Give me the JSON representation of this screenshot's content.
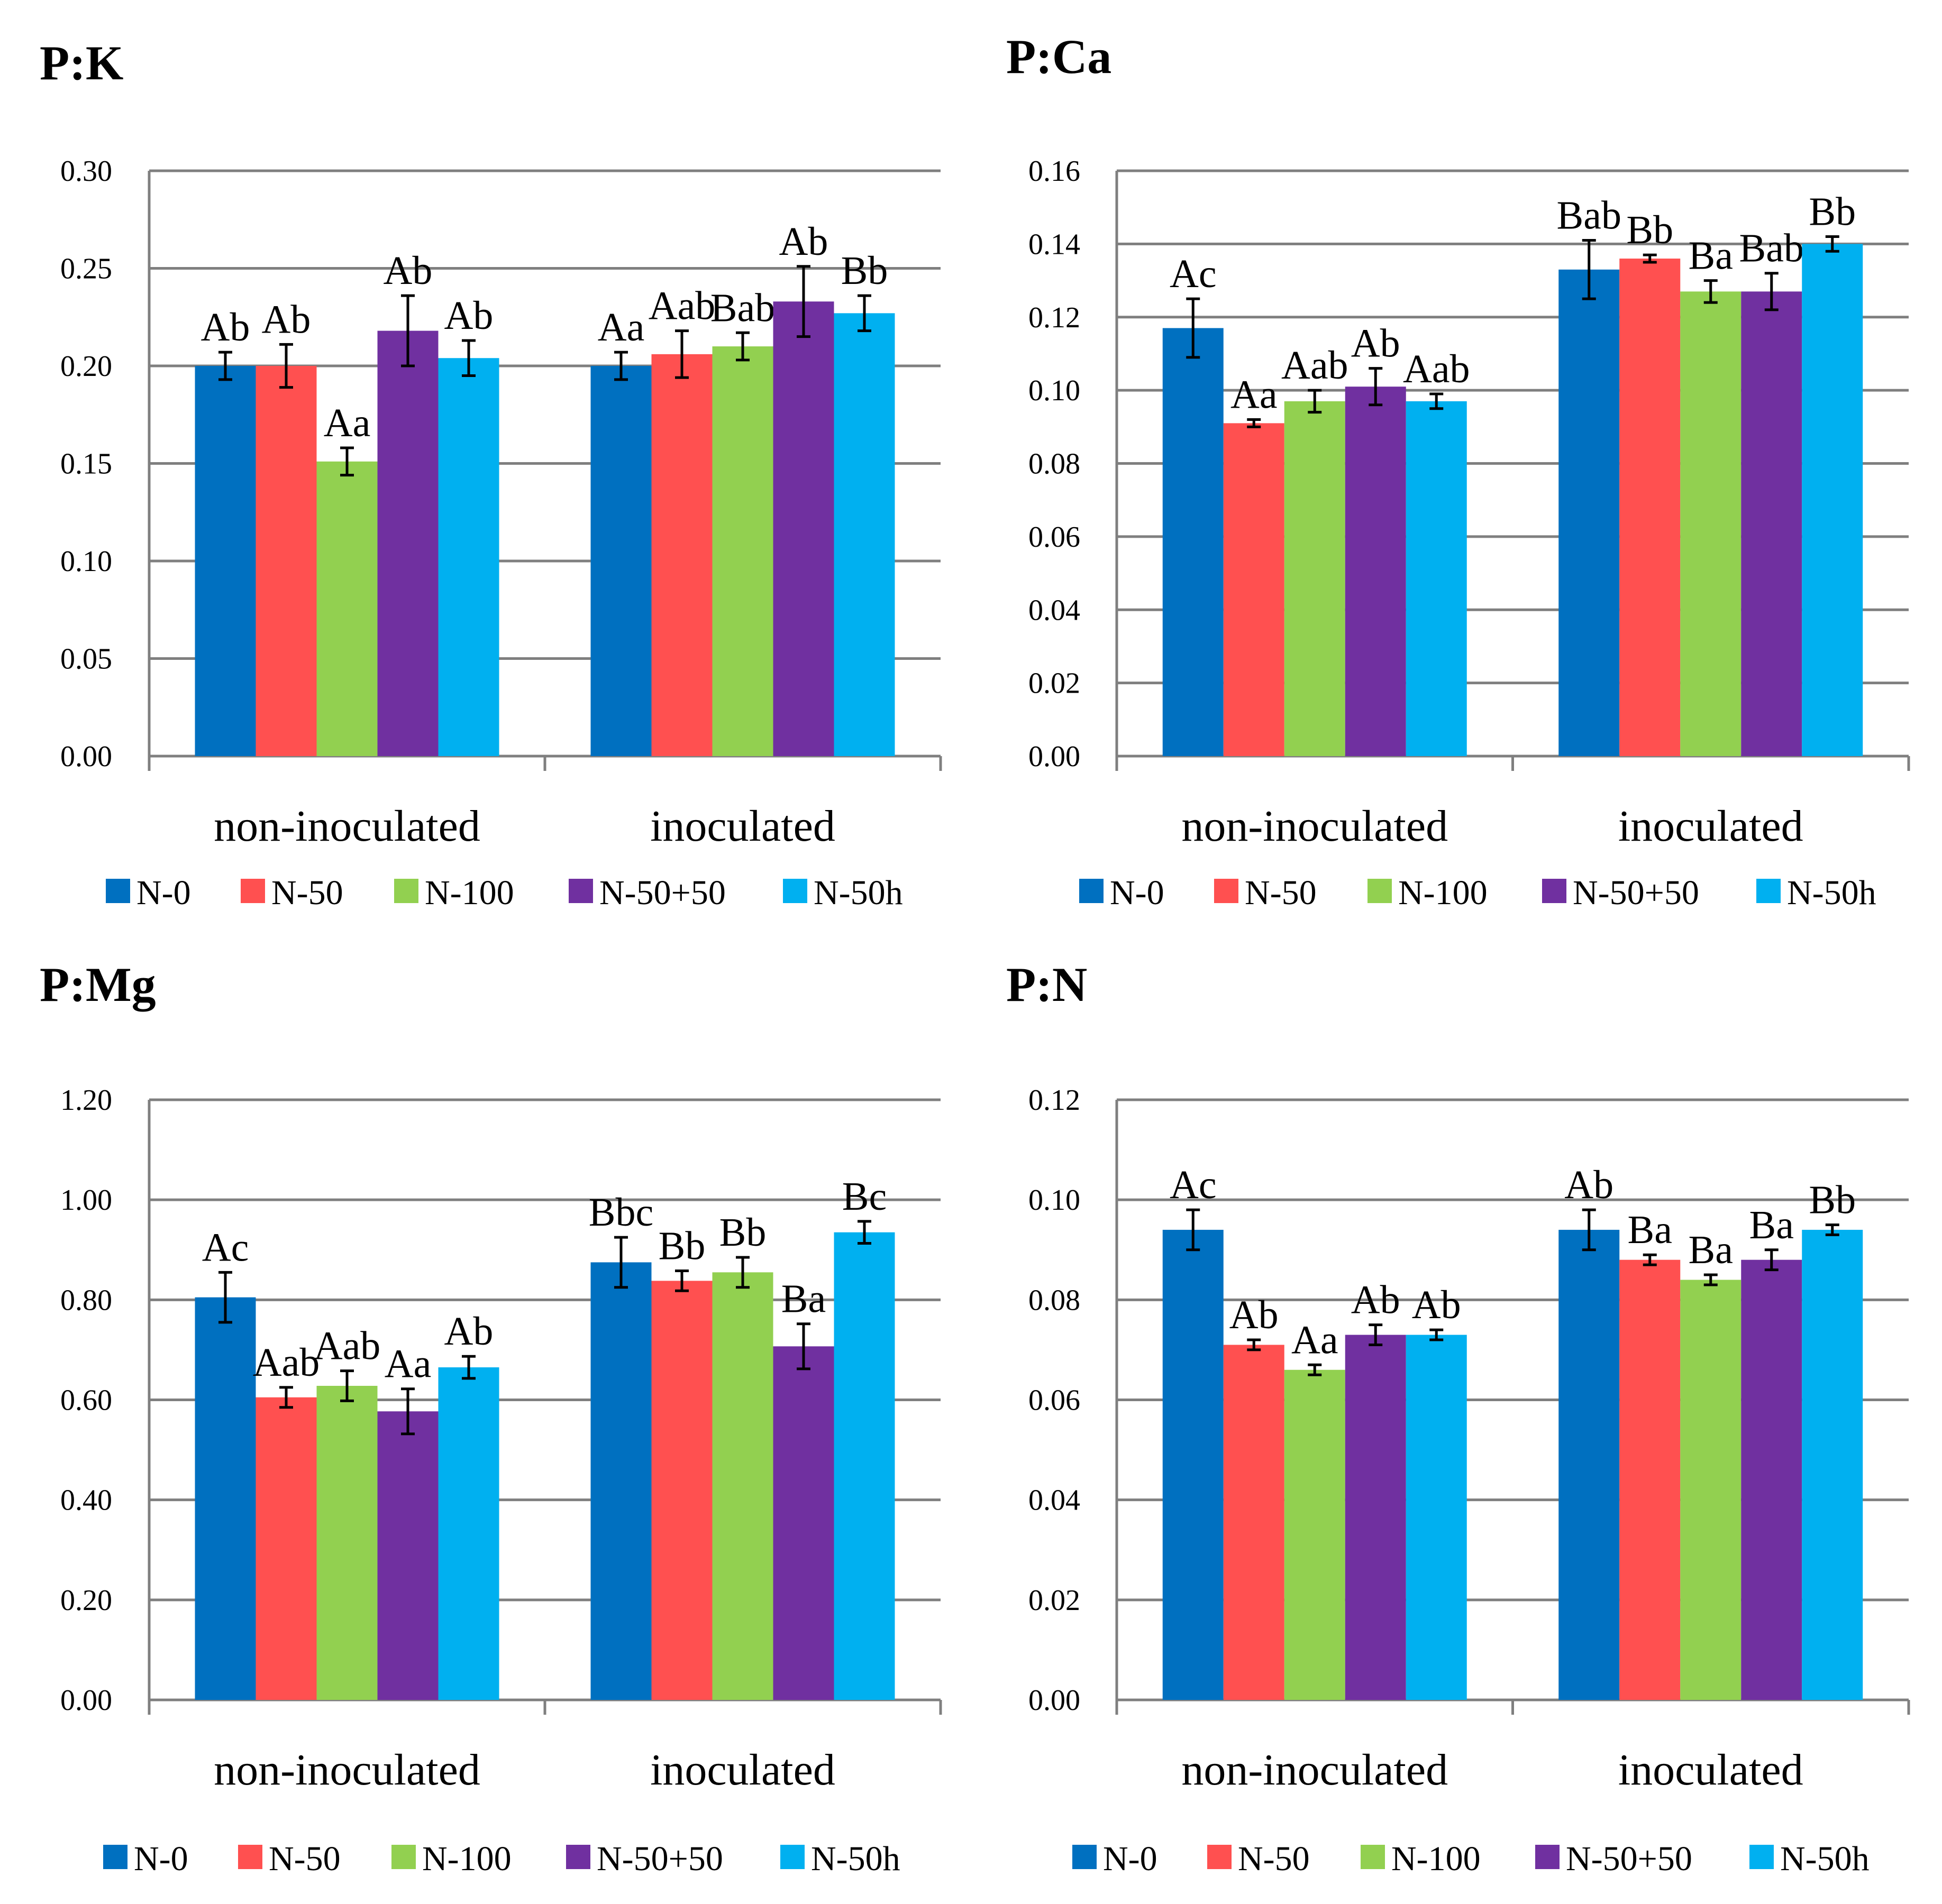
{
  "colors": {
    "N-0": "#0070C0",
    "N-50": "#FF5050",
    "N-100": "#92D050",
    "N-50+50": "#7030A0",
    "N-50h": "#00B0F0",
    "grid": "#7F7F7F",
    "error_bar": "#000000"
  },
  "chart_data": [
    {
      "type": "bar",
      "title": "P:K",
      "categories": [
        "non-inoculated",
        "inoculated"
      ],
      "ylim": [
        0,
        0.3
      ],
      "yticks": [
        "0.00",
        "0.05",
        "0.10",
        "0.15",
        "0.20",
        "0.25",
        "0.30"
      ],
      "legend": [
        "N-0",
        "N-50",
        "N-100",
        "N-50+50",
        "N-50h"
      ],
      "series": [
        {
          "name": "N-0",
          "values": [
            0.2,
            0.2
          ],
          "errors": [
            0.007,
            0.007
          ],
          "labels": [
            "Ab",
            "Aa"
          ]
        },
        {
          "name": "N-50",
          "values": [
            0.2,
            0.206
          ],
          "errors": [
            0.011,
            0.012
          ],
          "labels": [
            "Ab",
            "Aab"
          ]
        },
        {
          "name": "N-100",
          "values": [
            0.151,
            0.21
          ],
          "errors": [
            0.007,
            0.007
          ],
          "labels": [
            "Aa",
            "Bab"
          ]
        },
        {
          "name": "N-50+50",
          "values": [
            0.218,
            0.233
          ],
          "errors": [
            0.018,
            0.018
          ],
          "labels": [
            "Ab",
            "Ab"
          ]
        },
        {
          "name": "N-50h",
          "values": [
            0.204,
            0.227
          ],
          "errors": [
            0.009,
            0.009
          ],
          "labels": [
            "Ab",
            "Bb"
          ]
        }
      ]
    },
    {
      "type": "bar",
      "title": "P:Ca",
      "categories": [
        "non-inoculated",
        "inoculated"
      ],
      "ylim": [
        0,
        0.16
      ],
      "yticks": [
        "0.00",
        "0.02",
        "0.04",
        "0.06",
        "0.08",
        "0.10",
        "0.12",
        "0.14",
        "0.16"
      ],
      "legend": [
        "N-0",
        "N-50",
        "N-100",
        "N-50+50",
        "N-50h"
      ],
      "series": [
        {
          "name": "N-0",
          "values": [
            0.117,
            0.133
          ],
          "errors": [
            0.008,
            0.008
          ],
          "labels": [
            "Ac",
            "Bab"
          ]
        },
        {
          "name": "N-50",
          "values": [
            0.091,
            0.136
          ],
          "errors": [
            0.001,
            0.001
          ],
          "labels": [
            "Aa",
            "Bb"
          ]
        },
        {
          "name": "N-100",
          "values": [
            0.097,
            0.127
          ],
          "errors": [
            0.003,
            0.003
          ],
          "labels": [
            "Aab",
            "Ba"
          ]
        },
        {
          "name": "N-50+50",
          "values": [
            0.101,
            0.127
          ],
          "errors": [
            0.005,
            0.005
          ],
          "labels": [
            "Ab",
            "Bab"
          ]
        },
        {
          "name": "N-50h",
          "values": [
            0.097,
            0.14
          ],
          "errors": [
            0.002,
            0.002
          ],
          "labels": [
            "Aab",
            "Bb"
          ]
        }
      ]
    },
    {
      "type": "bar",
      "title": "P:Mg",
      "categories": [
        "non-inoculated",
        "inoculated"
      ],
      "ylim": [
        0,
        1.2
      ],
      "yticks": [
        "0.00",
        "0.20",
        "0.40",
        "0.60",
        "0.80",
        "1.00",
        "1.20"
      ],
      "legend": [
        "N-0",
        "N-50",
        "N-100",
        "N-50+50",
        "N-50h"
      ],
      "series": [
        {
          "name": "N-0",
          "values": [
            0.805,
            0.875
          ],
          "errors": [
            0.05,
            0.05
          ],
          "labels": [
            "Ac",
            "Bbc"
          ]
        },
        {
          "name": "N-50",
          "values": [
            0.605,
            0.838
          ],
          "errors": [
            0.02,
            0.02
          ],
          "labels": [
            "Aab",
            "Bb"
          ]
        },
        {
          "name": "N-100",
          "values": [
            0.628,
            0.855
          ],
          "errors": [
            0.03,
            0.03
          ],
          "labels": [
            "Aab",
            "Bb"
          ]
        },
        {
          "name": "N-50+50",
          "values": [
            0.577,
            0.707
          ],
          "errors": [
            0.045,
            0.045
          ],
          "labels": [
            "Aa",
            "Ba"
          ]
        },
        {
          "name": "N-50h",
          "values": [
            0.665,
            0.935
          ],
          "errors": [
            0.022,
            0.022
          ],
          "labels": [
            "Ab",
            "Bc"
          ]
        }
      ]
    },
    {
      "type": "bar",
      "title": "P:N",
      "categories": [
        "non-inoculated",
        "inoculated"
      ],
      "ylim": [
        0,
        0.12
      ],
      "yticks": [
        "0.00",
        "0.02",
        "0.04",
        "0.06",
        "0.08",
        "0.10",
        "0.12"
      ],
      "legend": [
        "N-0",
        "N-50",
        "N-100",
        "N-50+50",
        "N-50h"
      ],
      "series": [
        {
          "name": "N-0",
          "values": [
            0.094,
            0.094
          ],
          "errors": [
            0.004,
            0.004
          ],
          "labels": [
            "Ac",
            "Ab"
          ]
        },
        {
          "name": "N-50",
          "values": [
            0.071,
            0.088
          ],
          "errors": [
            0.001,
            0.001
          ],
          "labels": [
            "Ab",
            "Ba"
          ]
        },
        {
          "name": "N-100",
          "values": [
            0.066,
            0.084
          ],
          "errors": [
            0.001,
            0.001
          ],
          "labels": [
            "Aa",
            "Ba"
          ]
        },
        {
          "name": "N-50+50",
          "values": [
            0.073,
            0.088
          ],
          "errors": [
            0.002,
            0.002
          ],
          "labels": [
            "Ab",
            "Ba"
          ]
        },
        {
          "name": "N-50h",
          "values": [
            0.073,
            0.094
          ],
          "errors": [
            0.001,
            0.001
          ],
          "labels": [
            "Ab",
            "Bb"
          ]
        }
      ]
    }
  ]
}
